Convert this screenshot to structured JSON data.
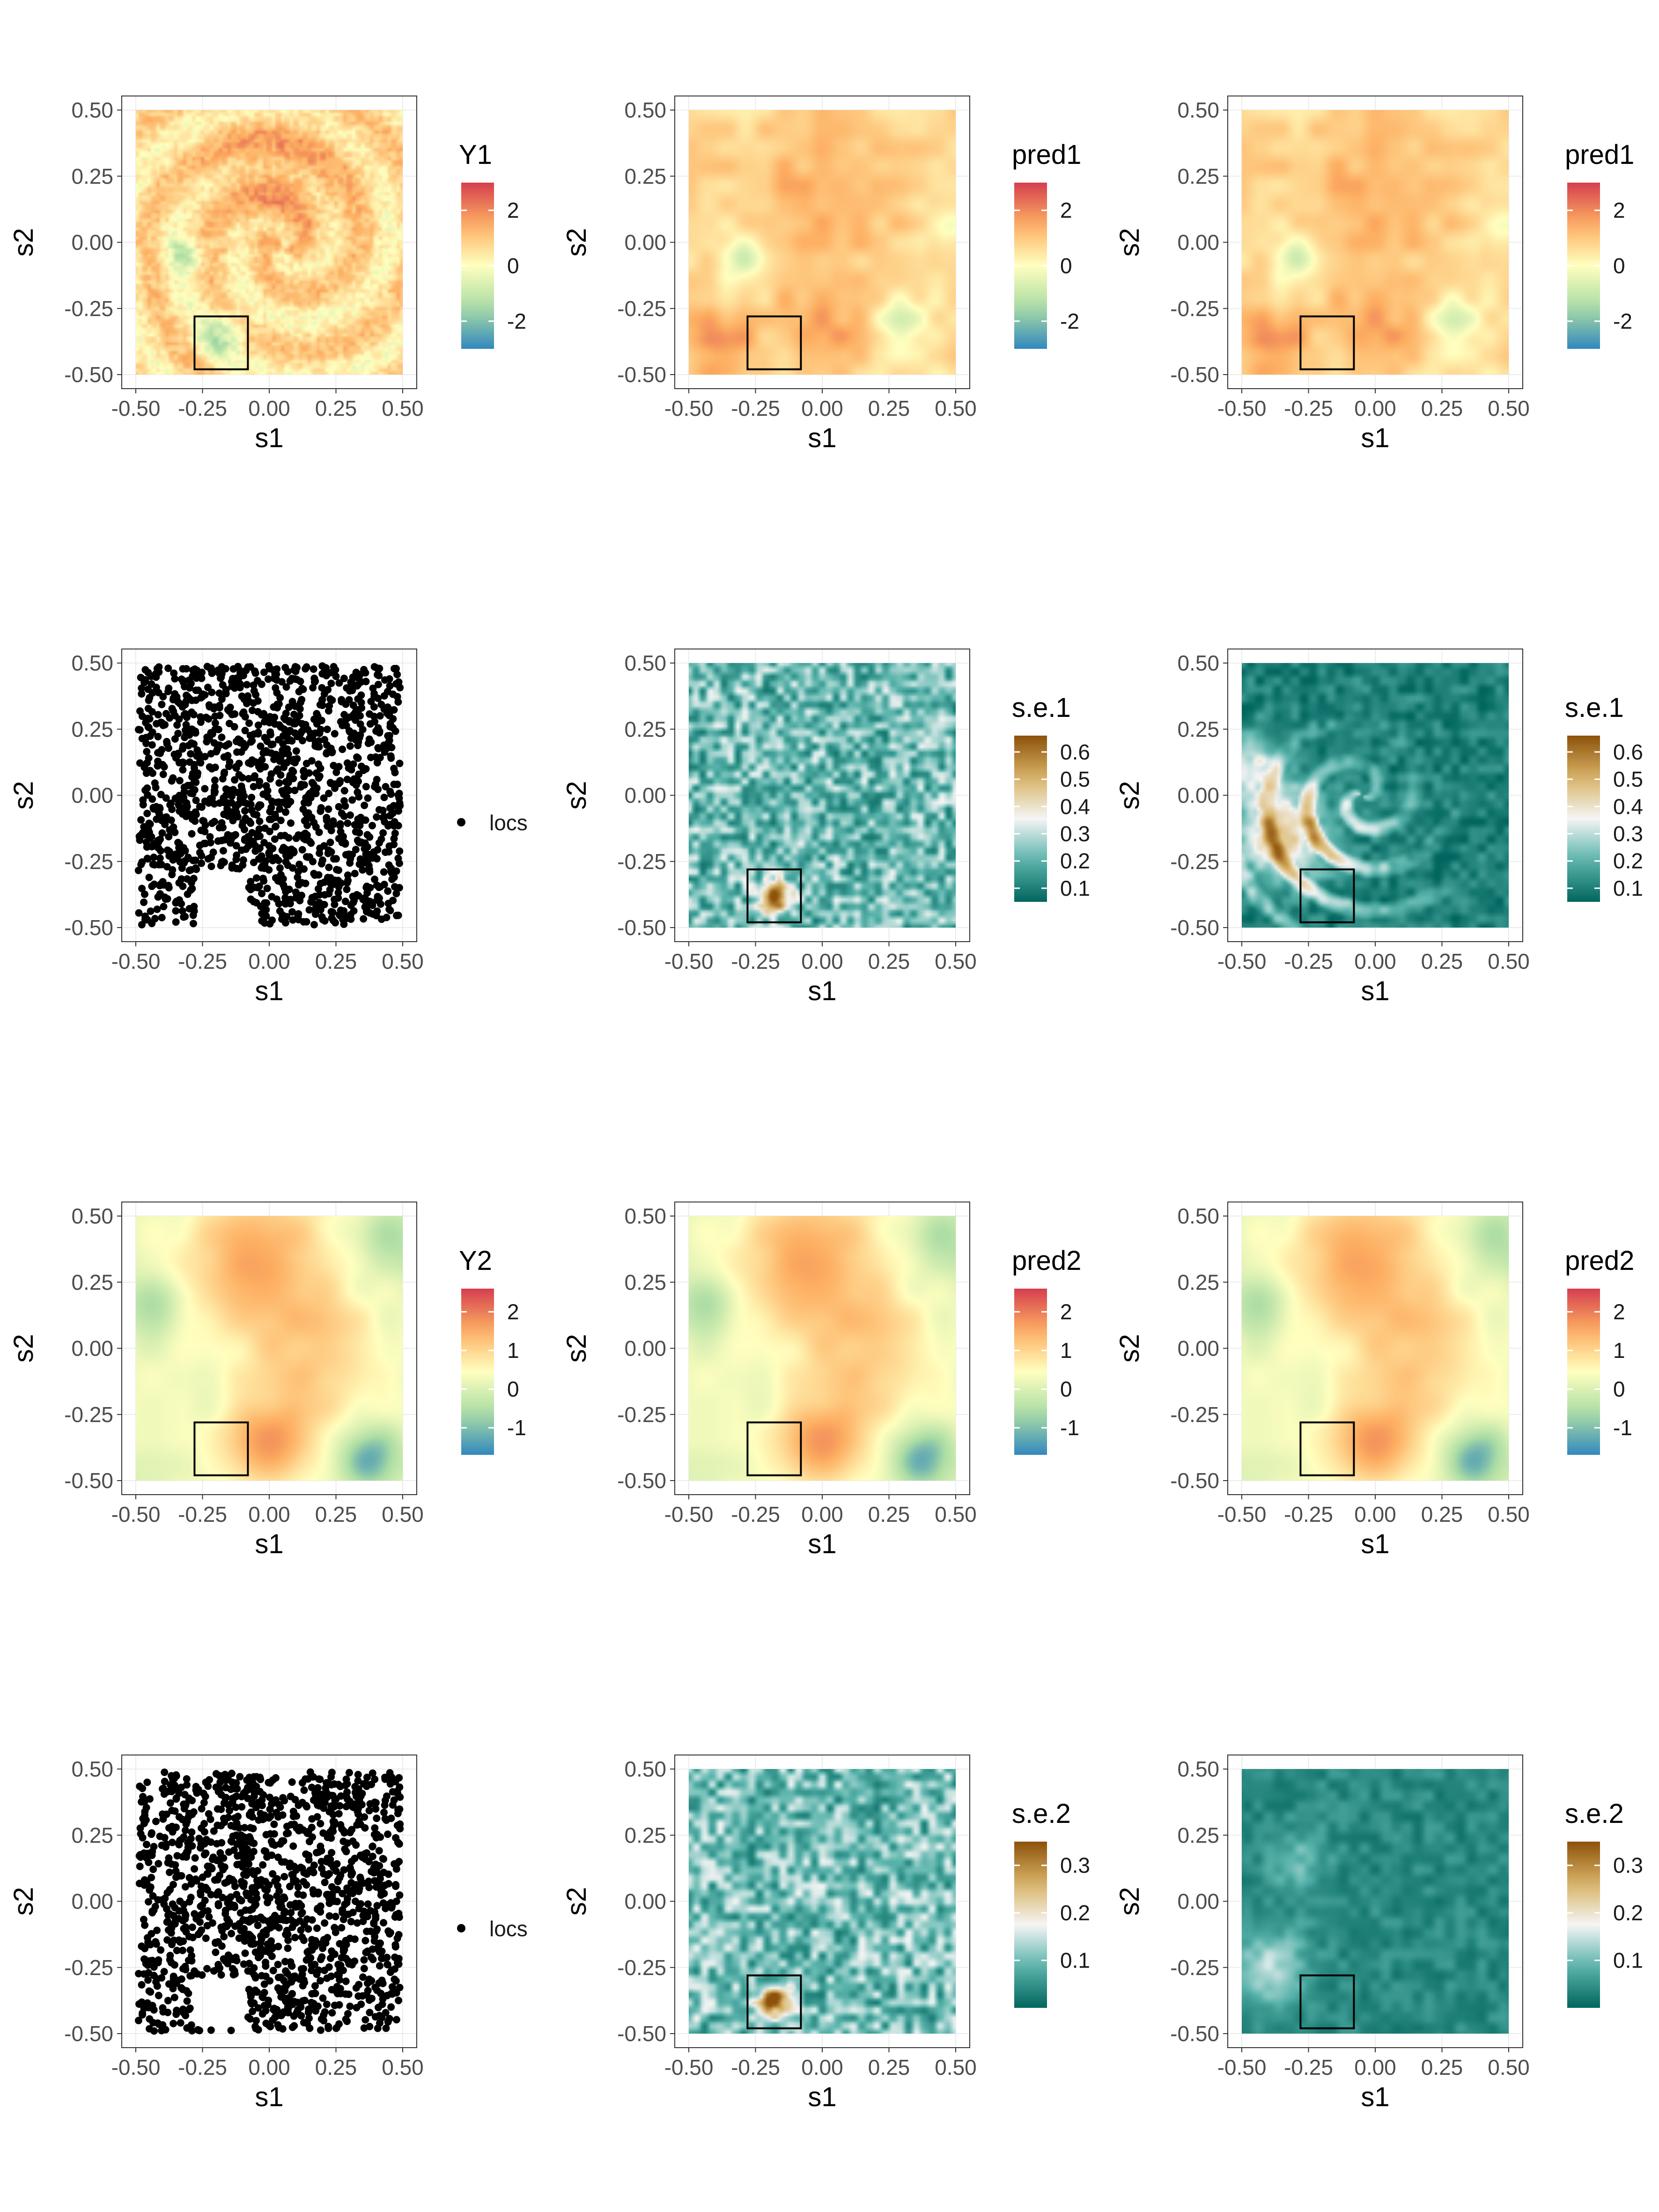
{
  "layout_grid": {
    "rows": 4,
    "cols": 3
  },
  "palettes": {
    "spectral": [
      "#3288bd",
      "#abdda4",
      "#ffffbf",
      "#fdae61",
      "#d53e4f"
    ],
    "brbg": [
      "#01665e",
      "#5ab4ac",
      "#f5f5f5",
      "#d8b365",
      "#8c510a"
    ]
  },
  "chart_data": [
    {
      "id": "p11",
      "type": "heatmap",
      "field": "Y1",
      "legend_title": "Y1",
      "palette": "spectral",
      "xlabel": "s1",
      "ylabel": "s2",
      "xlim": [
        -0.5,
        0.5
      ],
      "ylim": [
        -0.5,
        0.5
      ],
      "x_ticks": [
        "-0.50",
        "-0.25",
        "0.00",
        "0.25",
        "0.50"
      ],
      "y_ticks": [
        "0.50",
        "0.25",
        "0.00",
        "-0.25",
        "-0.50"
      ],
      "legend_ticks": [
        "2",
        "0",
        "-2"
      ],
      "legend_tick_values": [
        2,
        0,
        -2
      ],
      "legend_range": [
        -3,
        3
      ],
      "highlight_box": {
        "s1": [
          -0.28,
          -0.08
        ],
        "s2": [
          -0.48,
          -0.28
        ]
      }
    },
    {
      "id": "p12",
      "type": "heatmap",
      "field": "pred1",
      "legend_title": "pred1",
      "palette": "spectral",
      "xlabel": "s1",
      "ylabel": "s2",
      "xlim": [
        -0.5,
        0.5
      ],
      "ylim": [
        -0.5,
        0.5
      ],
      "x_ticks": [
        "-0.50",
        "-0.25",
        "0.00",
        "0.25",
        "0.50"
      ],
      "y_ticks": [
        "0.50",
        "0.25",
        "0.00",
        "-0.25",
        "-0.50"
      ],
      "legend_ticks": [
        "2",
        "0",
        "-2"
      ],
      "legend_tick_values": [
        2,
        0,
        -2
      ],
      "legend_range": [
        -3,
        3
      ],
      "highlight_box": {
        "s1": [
          -0.28,
          -0.08
        ],
        "s2": [
          -0.48,
          -0.28
        ]
      }
    },
    {
      "id": "p13",
      "type": "heatmap",
      "field": "pred1",
      "legend_title": "pred1",
      "palette": "spectral",
      "xlabel": "s1",
      "ylabel": "s2",
      "xlim": [
        -0.5,
        0.5
      ],
      "ylim": [
        -0.5,
        0.5
      ],
      "x_ticks": [
        "-0.50",
        "-0.25",
        "0.00",
        "0.25",
        "0.50"
      ],
      "y_ticks": [
        "0.50",
        "0.25",
        "0.00",
        "-0.25",
        "-0.50"
      ],
      "legend_ticks": [
        "2",
        "0",
        "-2"
      ],
      "legend_tick_values": [
        2,
        0,
        -2
      ],
      "legend_range": [
        -3,
        3
      ],
      "highlight_box": {
        "s1": [
          -0.28,
          -0.08
        ],
        "s2": [
          -0.48,
          -0.28
        ]
      }
    },
    {
      "id": "p21",
      "type": "scatter",
      "field": "locs",
      "legend_label": "locs",
      "xlabel": "s1",
      "ylabel": "s2",
      "xlim": [
        -0.5,
        0.5
      ],
      "ylim": [
        -0.5,
        0.5
      ],
      "x_ticks": [
        "-0.50",
        "-0.25",
        "0.00",
        "0.25",
        "0.50"
      ],
      "y_ticks": [
        "0.50",
        "0.25",
        "0.00",
        "-0.25",
        "-0.50"
      ],
      "holdout_region": {
        "s1": [
          -0.28,
          -0.08
        ],
        "s2": [
          -0.48,
          -0.28
        ]
      }
    },
    {
      "id": "p22",
      "type": "heatmap",
      "field": "se1_a",
      "legend_title": "s.e.1",
      "palette": "brbg",
      "xlabel": "s1",
      "ylabel": "s2",
      "xlim": [
        -0.5,
        0.5
      ],
      "ylim": [
        -0.5,
        0.5
      ],
      "x_ticks": [
        "-0.50",
        "-0.25",
        "0.00",
        "0.25",
        "0.50"
      ],
      "y_ticks": [
        "0.50",
        "0.25",
        "0.00",
        "-0.25",
        "-0.50"
      ],
      "legend_ticks": [
        "0.6",
        "0.5",
        "0.4",
        "0.3",
        "0.2",
        "0.1"
      ],
      "legend_tick_values": [
        0.6,
        0.5,
        0.4,
        0.3,
        0.2,
        0.1
      ],
      "legend_range": [
        0.05,
        0.66
      ],
      "highlight_box": {
        "s1": [
          -0.28,
          -0.08
        ],
        "s2": [
          -0.48,
          -0.28
        ]
      }
    },
    {
      "id": "p23",
      "type": "heatmap",
      "field": "se1_b",
      "legend_title": "s.e.1",
      "palette": "brbg",
      "xlabel": "s1",
      "ylabel": "s2",
      "xlim": [
        -0.5,
        0.5
      ],
      "ylim": [
        -0.5,
        0.5
      ],
      "x_ticks": [
        "-0.50",
        "-0.25",
        "0.00",
        "0.25",
        "0.50"
      ],
      "y_ticks": [
        "0.50",
        "0.25",
        "0.00",
        "-0.25",
        "-0.50"
      ],
      "legend_ticks": [
        "0.6",
        "0.5",
        "0.4",
        "0.3",
        "0.2",
        "0.1"
      ],
      "legend_tick_values": [
        0.6,
        0.5,
        0.4,
        0.3,
        0.2,
        0.1
      ],
      "legend_range": [
        0.05,
        0.66
      ],
      "highlight_box": {
        "s1": [
          -0.28,
          -0.08
        ],
        "s2": [
          -0.48,
          -0.28
        ]
      }
    },
    {
      "id": "p31",
      "type": "heatmap",
      "field": "Y2",
      "legend_title": "Y2",
      "palette": "spectral",
      "xlabel": "s1",
      "ylabel": "s2",
      "xlim": [
        -0.5,
        0.5
      ],
      "ylim": [
        -0.5,
        0.5
      ],
      "x_ticks": [
        "-0.50",
        "-0.25",
        "0.00",
        "0.25",
        "0.50"
      ],
      "y_ticks": [
        "0.50",
        "0.25",
        "0.00",
        "-0.25",
        "-0.50"
      ],
      "legend_ticks": [
        "2",
        "1",
        "0",
        "-1"
      ],
      "legend_tick_values": [
        2,
        1,
        0,
        -1
      ],
      "legend_range": [
        -1.7,
        2.6
      ],
      "highlight_box": {
        "s1": [
          -0.28,
          -0.08
        ],
        "s2": [
          -0.48,
          -0.28
        ]
      }
    },
    {
      "id": "p32",
      "type": "heatmap",
      "field": "pred2",
      "legend_title": "pred2",
      "palette": "spectral",
      "xlabel": "s1",
      "ylabel": "s2",
      "xlim": [
        -0.5,
        0.5
      ],
      "ylim": [
        -0.5,
        0.5
      ],
      "x_ticks": [
        "-0.50",
        "-0.25",
        "0.00",
        "0.25",
        "0.50"
      ],
      "y_ticks": [
        "0.50",
        "0.25",
        "0.00",
        "-0.25",
        "-0.50"
      ],
      "legend_ticks": [
        "2",
        "1",
        "0",
        "-1"
      ],
      "legend_tick_values": [
        2,
        1,
        0,
        -1
      ],
      "legend_range": [
        -1.7,
        2.6
      ],
      "highlight_box": {
        "s1": [
          -0.28,
          -0.08
        ],
        "s2": [
          -0.48,
          -0.28
        ]
      }
    },
    {
      "id": "p33",
      "type": "heatmap",
      "field": "pred2",
      "legend_title": "pred2",
      "palette": "spectral",
      "xlabel": "s1",
      "ylabel": "s2",
      "xlim": [
        -0.5,
        0.5
      ],
      "ylim": [
        -0.5,
        0.5
      ],
      "x_ticks": [
        "-0.50",
        "-0.25",
        "0.00",
        "0.25",
        "0.50"
      ],
      "y_ticks": [
        "0.50",
        "0.25",
        "0.00",
        "-0.25",
        "-0.50"
      ],
      "legend_ticks": [
        "2",
        "1",
        "0",
        "-1"
      ],
      "legend_tick_values": [
        2,
        1,
        0,
        -1
      ],
      "legend_range": [
        -1.7,
        2.6
      ],
      "highlight_box": {
        "s1": [
          -0.28,
          -0.08
        ],
        "s2": [
          -0.48,
          -0.28
        ]
      }
    },
    {
      "id": "p41",
      "type": "scatter",
      "field": "locs",
      "legend_label": "locs",
      "xlabel": "s1",
      "ylabel": "s2",
      "xlim": [
        -0.5,
        0.5
      ],
      "ylim": [
        -0.5,
        0.5
      ],
      "x_ticks": [
        "-0.50",
        "-0.25",
        "0.00",
        "0.25",
        "0.50"
      ],
      "y_ticks": [
        "0.50",
        "0.25",
        "0.00",
        "-0.25",
        "-0.50"
      ],
      "holdout_region": {
        "s1": [
          -0.28,
          -0.08
        ],
        "s2": [
          -0.48,
          -0.28
        ]
      }
    },
    {
      "id": "p42",
      "type": "heatmap",
      "field": "se2_a",
      "legend_title": "s.e.2",
      "palette": "brbg",
      "xlabel": "s1",
      "ylabel": "s2",
      "xlim": [
        -0.5,
        0.5
      ],
      "ylim": [
        -0.5,
        0.5
      ],
      "x_ticks": [
        "-0.50",
        "-0.25",
        "0.00",
        "0.25",
        "0.50"
      ],
      "y_ticks": [
        "0.50",
        "0.25",
        "0.00",
        "-0.25",
        "-0.50"
      ],
      "legend_ticks": [
        "0.3",
        "0.2",
        "0.1"
      ],
      "legend_tick_values": [
        0.3,
        0.2,
        0.1
      ],
      "legend_range": [
        0.0,
        0.35
      ],
      "highlight_box": {
        "s1": [
          -0.28,
          -0.08
        ],
        "s2": [
          -0.48,
          -0.28
        ]
      }
    },
    {
      "id": "p43",
      "type": "heatmap",
      "field": "se2_b",
      "legend_title": "s.e.2",
      "palette": "brbg",
      "xlabel": "s1",
      "ylabel": "s2",
      "xlim": [
        -0.5,
        0.5
      ],
      "ylim": [
        -0.5,
        0.5
      ],
      "x_ticks": [
        "-0.50",
        "-0.25",
        "0.00",
        "0.25",
        "0.50"
      ],
      "y_ticks": [
        "0.50",
        "0.25",
        "0.00",
        "-0.25",
        "-0.50"
      ],
      "legend_ticks": [
        "0.3",
        "0.2",
        "0.1"
      ],
      "legend_tick_values": [
        0.3,
        0.2,
        0.1
      ],
      "legend_range": [
        0.0,
        0.35
      ],
      "highlight_box": {
        "s1": [
          -0.28,
          -0.08
        ],
        "s2": [
          -0.48,
          -0.28
        ]
      }
    }
  ]
}
